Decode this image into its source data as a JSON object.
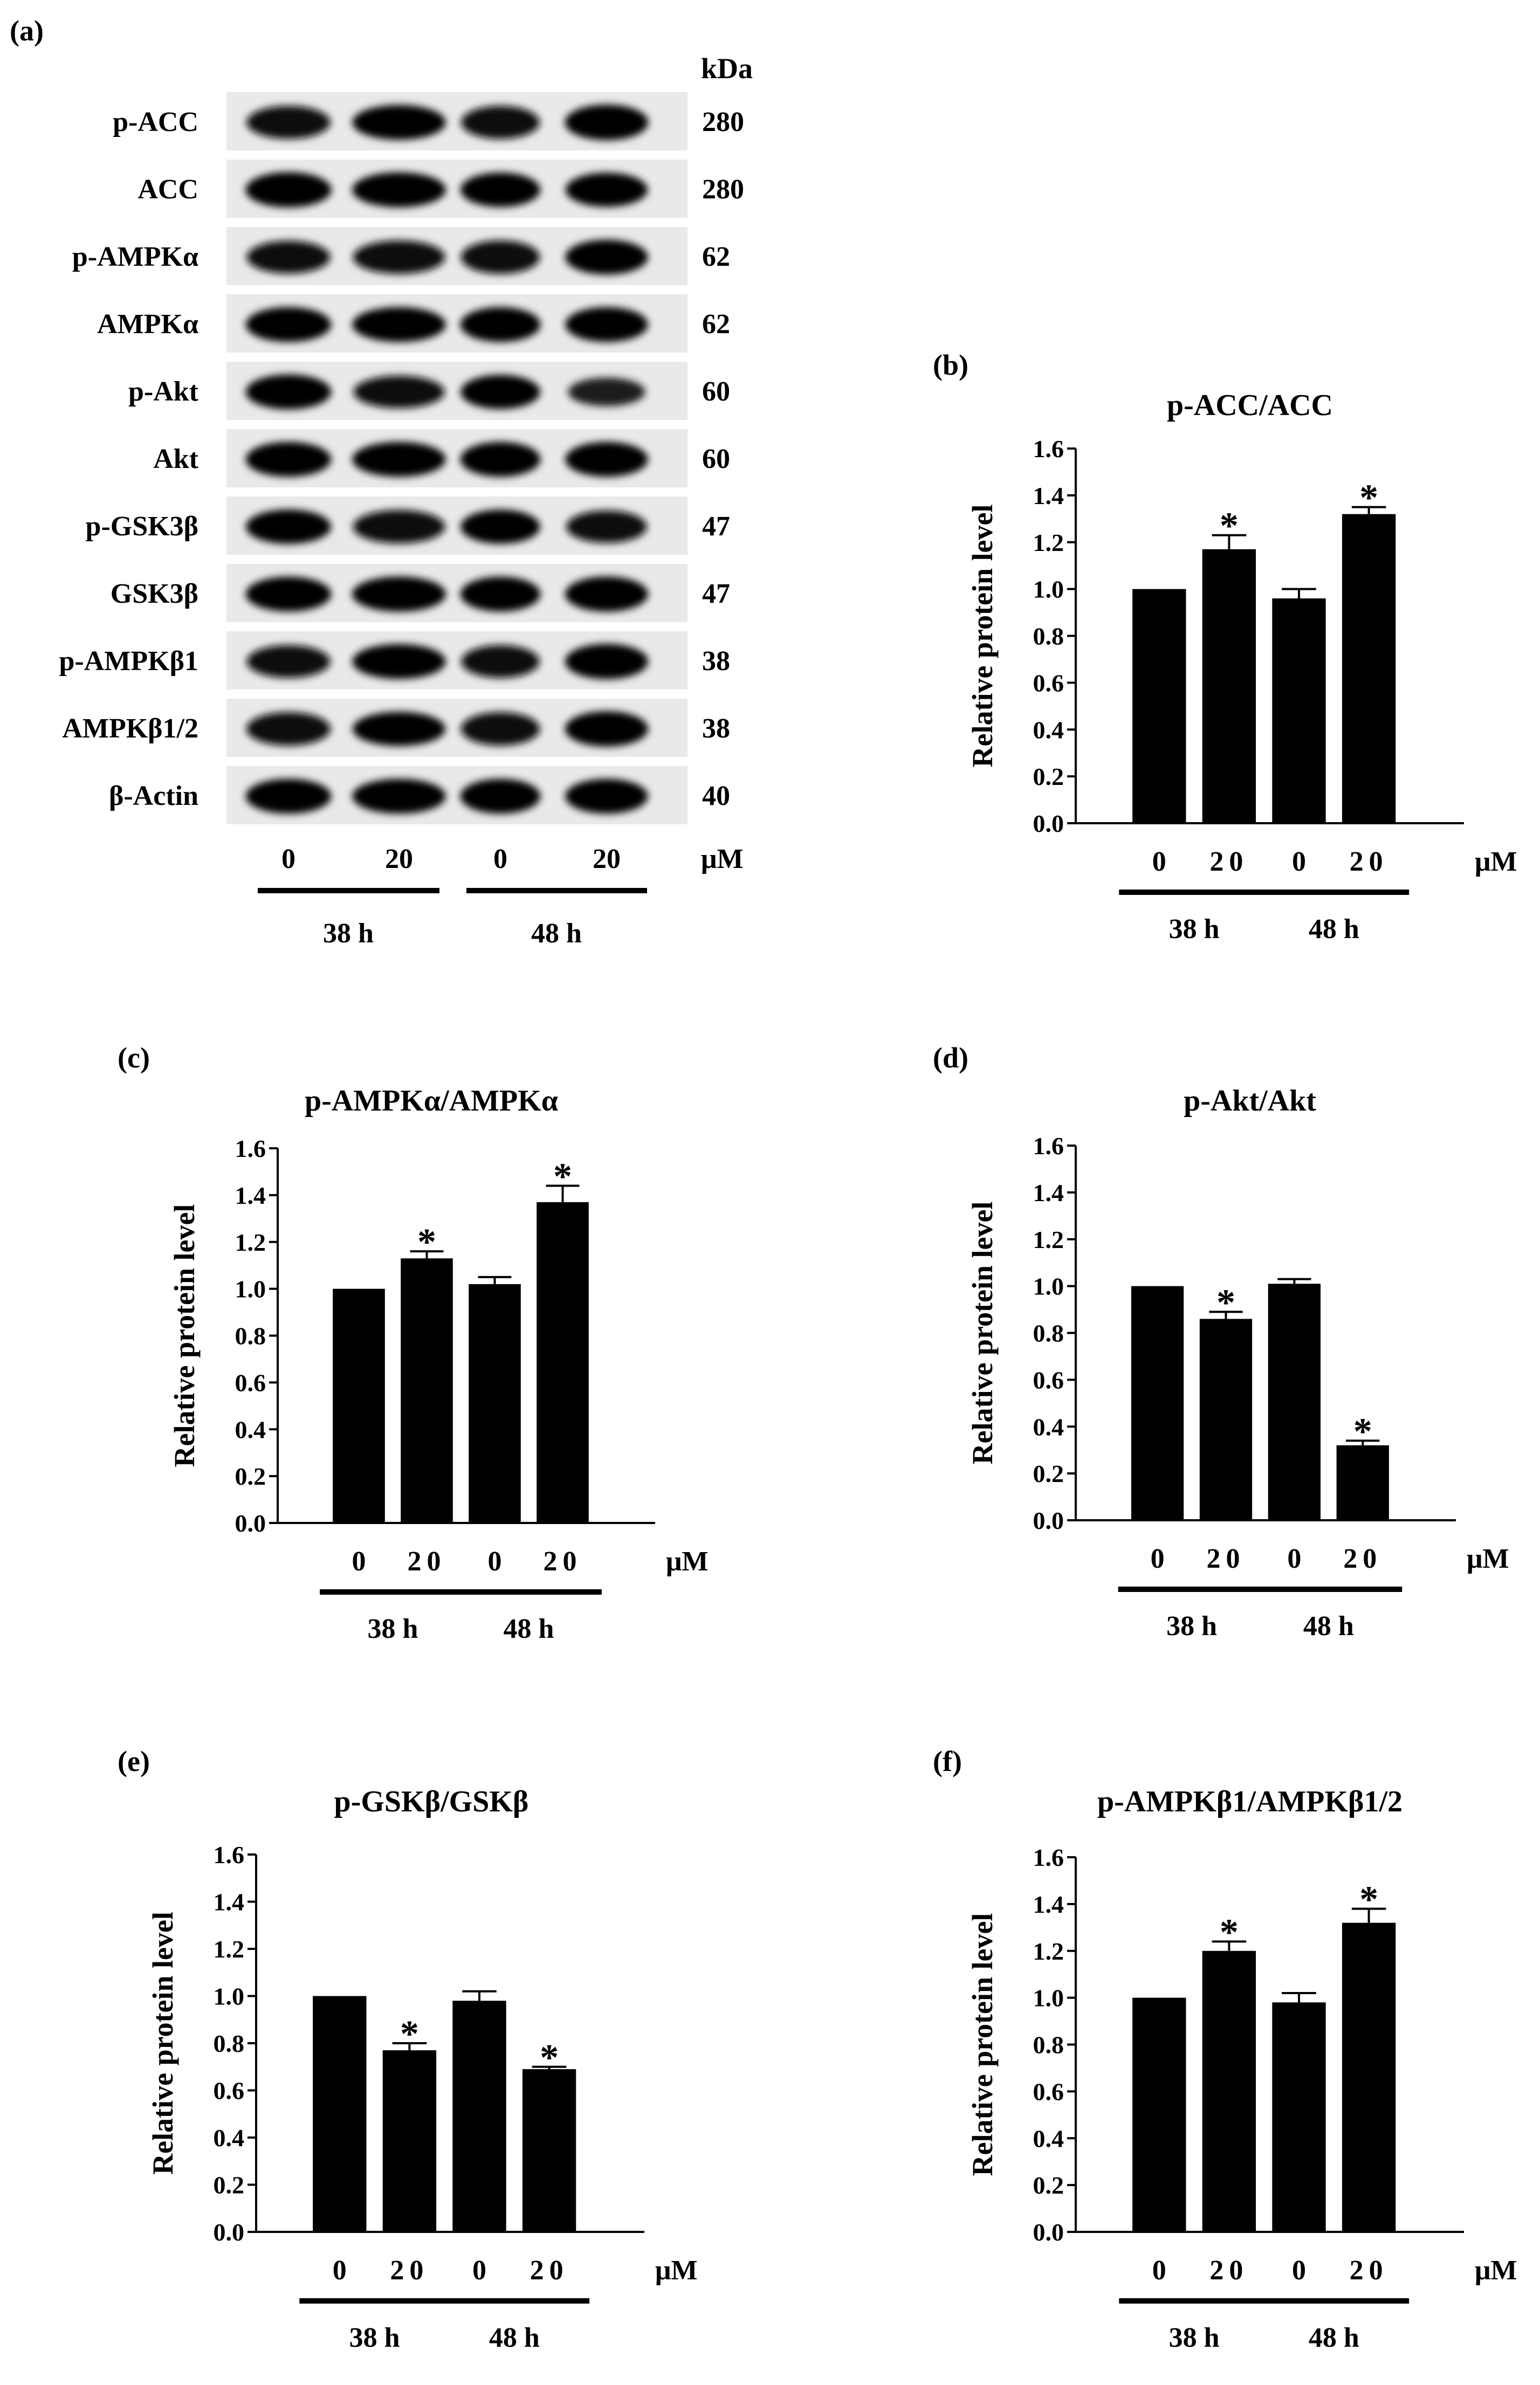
{
  "panel_a": {
    "label": "(a)",
    "kda_header": "kDa",
    "rows": [
      {
        "name": "p-ACC",
        "kda": "280",
        "intensity": [
          0.82,
          0.95,
          0.82,
          1.0
        ]
      },
      {
        "name": "ACC",
        "kda": "280",
        "intensity": [
          0.98,
          0.96,
          0.92,
          0.9
        ]
      },
      {
        "name": "p-AMPKα",
        "kda": "62",
        "intensity": [
          0.8,
          0.85,
          0.85,
          0.95
        ]
      },
      {
        "name": "AMPKα",
        "kda": "62",
        "intensity": [
          0.95,
          0.95,
          0.95,
          0.95
        ]
      },
      {
        "name": "p-Akt",
        "kda": "60",
        "intensity": [
          0.95,
          0.78,
          0.9,
          0.5
        ]
      },
      {
        "name": "Akt",
        "kda": "60",
        "intensity": [
          0.95,
          0.95,
          0.95,
          0.95
        ]
      },
      {
        "name": "p-GSK3β",
        "kda": "47",
        "intensity": [
          0.92,
          0.85,
          0.9,
          0.78
        ]
      },
      {
        "name": "GSK3β",
        "kda": "47",
        "intensity": [
          0.95,
          0.97,
          0.95,
          0.97
        ]
      },
      {
        "name": "p-AMPKβ1",
        "kda": "38",
        "intensity": [
          0.8,
          0.95,
          0.8,
          0.98
        ]
      },
      {
        "name": "AMPKβ1/2",
        "kda": "38",
        "intensity": [
          0.85,
          0.9,
          0.85,
          0.98
        ]
      },
      {
        "name": "β-Actin",
        "kda": "40",
        "intensity": [
          0.95,
          0.95,
          0.95,
          0.95
        ]
      }
    ],
    "doses": [
      "0",
      "20",
      "0",
      "20"
    ],
    "unit": "μM",
    "groups": [
      "38 h",
      "48 h"
    ]
  },
  "chart_data": [
    {
      "panel": "(b)",
      "type": "bar",
      "title": "p-ACC/ACC",
      "ylabel": "Relative protein level",
      "ylim": [
        0,
        1.6
      ],
      "yticks": [
        "0.0",
        "0.2",
        "0.4",
        "0.6",
        "0.8",
        "1.0",
        "1.2",
        "1.4",
        "1.6"
      ],
      "categories": [
        "0",
        "20",
        "0",
        "20"
      ],
      "groups": [
        "38 h",
        "48 h"
      ],
      "unit": "μM",
      "values": [
        1.0,
        1.17,
        0.96,
        1.32
      ],
      "errors": [
        0,
        0.06,
        0.04,
        0.03
      ],
      "significant": [
        false,
        true,
        false,
        true
      ],
      "sig_mark": "*"
    },
    {
      "panel": "(c)",
      "type": "bar",
      "title": "p-AMPKα/AMPKα",
      "ylabel": "Relative protein level",
      "ylim": [
        0,
        1.6
      ],
      "yticks": [
        "0.0",
        "0.2",
        "0.4",
        "0.6",
        "0.8",
        "1.0",
        "1.2",
        "1.4",
        "1.6"
      ],
      "categories": [
        "0",
        "20",
        "0",
        "20"
      ],
      "groups": [
        "38 h",
        "48 h"
      ],
      "unit": "μM",
      "values": [
        1.0,
        1.13,
        1.02,
        1.37
      ],
      "errors": [
        0,
        0.03,
        0.03,
        0.07
      ],
      "significant": [
        false,
        true,
        false,
        true
      ],
      "sig_mark": "*"
    },
    {
      "panel": "(d)",
      "type": "bar",
      "title": "p-Akt/Akt",
      "ylabel": "Relative protein level",
      "ylim": [
        0,
        1.6
      ],
      "yticks": [
        "0.0",
        "0.2",
        "0.4",
        "0.6",
        "0.8",
        "1.0",
        "1.2",
        "1.4",
        "1.6"
      ],
      "categories": [
        "0",
        "20",
        "0",
        "20"
      ],
      "groups": [
        "38 h",
        "48 h"
      ],
      "unit": "μM",
      "values": [
        1.0,
        0.86,
        1.01,
        0.32
      ],
      "errors": [
        0,
        0.03,
        0.02,
        0.02
      ],
      "significant": [
        false,
        true,
        false,
        true
      ],
      "sig_mark": "*"
    },
    {
      "panel": "(e)",
      "type": "bar",
      "title": "p-GSKβ/GSKβ",
      "ylabel": "Relative protein level",
      "ylim": [
        0,
        1.6
      ],
      "yticks": [
        "0.0",
        "0.2",
        "0.4",
        "0.6",
        "0.8",
        "1.0",
        "1.2",
        "1.4",
        "1.6"
      ],
      "categories": [
        "0",
        "20",
        "0",
        "20"
      ],
      "groups": [
        "38 h",
        "48 h"
      ],
      "unit": "μM",
      "values": [
        1.0,
        0.77,
        0.98,
        0.69
      ],
      "errors": [
        0,
        0.03,
        0.04,
        0.01
      ],
      "significant": [
        false,
        true,
        false,
        true
      ],
      "sig_mark": "*"
    },
    {
      "panel": "(f)",
      "type": "bar",
      "title": "p-AMPKβ1/AMPKβ1/2",
      "ylabel": "Relative protein level",
      "ylim": [
        0,
        1.6
      ],
      "yticks": [
        "0.0",
        "0.2",
        "0.4",
        "0.6",
        "0.8",
        "1.0",
        "1.2",
        "1.4",
        "1.6"
      ],
      "categories": [
        "0",
        "20",
        "0",
        "20"
      ],
      "groups": [
        "38 h",
        "48 h"
      ],
      "unit": "μM",
      "values": [
        1.0,
        1.2,
        0.98,
        1.32
      ],
      "errors": [
        0,
        0.04,
        0.04,
        0.06
      ],
      "significant": [
        false,
        true,
        false,
        true
      ],
      "sig_mark": "*"
    }
  ]
}
